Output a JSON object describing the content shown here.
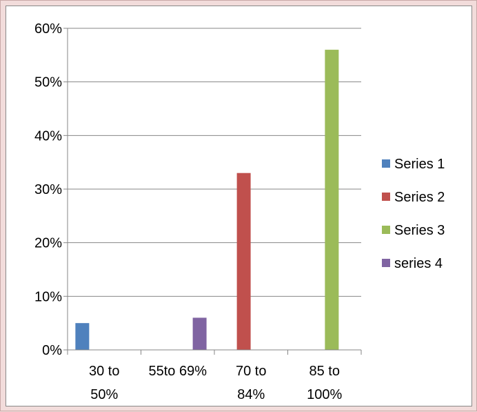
{
  "chart_data": {
    "type": "bar",
    "categories": [
      [
        "30 to",
        "50%"
      ],
      [
        "55to 69%"
      ],
      [
        "70 to",
        "84%"
      ],
      [
        "85 to",
        "100%"
      ]
    ],
    "series": [
      {
        "name": "Series 1",
        "color": "#4f81bd",
        "values": [
          5,
          0,
          0,
          0
        ]
      },
      {
        "name": "Series 2",
        "color": "#c0504d",
        "values": [
          0,
          0,
          33,
          0
        ]
      },
      {
        "name": "Series 3",
        "color": "#9bbb59",
        "values": [
          0,
          0,
          0,
          56
        ]
      },
      {
        "name": "series 4",
        "color": "#8064a2",
        "values": [
          0,
          6,
          0,
          0
        ]
      }
    ],
    "ylim": [
      0,
      60
    ],
    "yticks": [
      0,
      10,
      20,
      30,
      40,
      50,
      60
    ],
    "ytick_labels": [
      "0%",
      "10%",
      "20%",
      "30%",
      "40%",
      "50%",
      "60%"
    ],
    "grid": true,
    "legend": "right"
  }
}
